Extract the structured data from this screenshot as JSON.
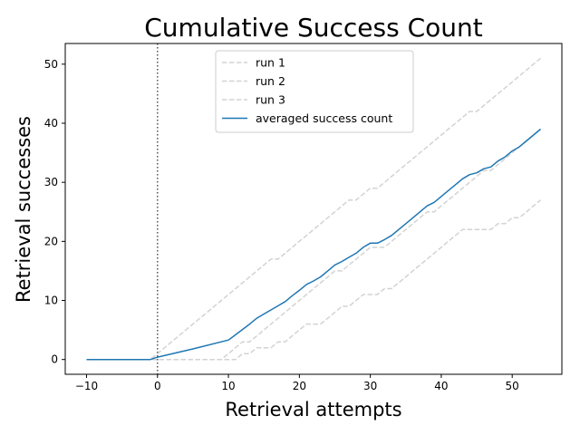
{
  "chart_data": {
    "type": "line",
    "title": "Cumulative Success Count",
    "xlabel": "Retrieval attempts",
    "ylabel": "Retrieval successes",
    "xlim": [
      -13,
      57
    ],
    "ylim": [
      -2.5,
      53.5
    ],
    "xticks": [
      -10,
      0,
      10,
      20,
      30,
      40,
      50
    ],
    "yticks": [
      0,
      10,
      20,
      30,
      40,
      50
    ],
    "vline_x": 0,
    "legend_position": "upper center",
    "series": [
      {
        "name": "run 1",
        "color": "#d3d3d3",
        "style": "dashed",
        "x": [
          -10,
          -1,
          0,
          1,
          2,
          3,
          4,
          5,
          6,
          7,
          8,
          9,
          10,
          11,
          12,
          13,
          14,
          15,
          16,
          17,
          18,
          19,
          20,
          21,
          22,
          23,
          24,
          25,
          26,
          27,
          28,
          29,
          30,
          31,
          32,
          33,
          34,
          35,
          36,
          37,
          38,
          39,
          40,
          41,
          42,
          43,
          44,
          45,
          46,
          47,
          48,
          49,
          50,
          51,
          52,
          53,
          54
        ],
        "values": [
          0,
          0,
          1,
          2,
          3,
          4,
          5,
          6,
          7,
          8,
          9,
          10,
          11,
          12,
          13,
          14,
          15,
          16,
          17,
          17,
          18,
          19,
          20,
          21,
          22,
          23,
          24,
          25,
          26,
          27,
          27,
          28,
          29,
          29,
          30,
          31,
          32,
          33,
          34,
          35,
          36,
          37,
          38,
          39,
          40,
          41,
          42,
          42,
          43,
          44,
          45,
          46,
          47,
          48,
          49,
          50,
          51
        ]
      },
      {
        "name": "run 2",
        "color": "#d3d3d3",
        "style": "dashed",
        "x": [
          -10,
          0,
          1,
          2,
          3,
          4,
          5,
          6,
          7,
          8,
          9,
          10,
          11,
          12,
          13,
          14,
          15,
          16,
          17,
          18,
          19,
          20,
          21,
          22,
          23,
          24,
          25,
          26,
          27,
          28,
          29,
          30,
          31,
          32,
          33,
          34,
          35,
          36,
          37,
          38,
          39,
          40,
          41,
          42,
          43,
          44,
          45,
          46,
          47,
          48,
          49,
          50,
          51,
          52,
          53,
          54
        ],
        "values": [
          0,
          0,
          0,
          0,
          0,
          0,
          0,
          0,
          0,
          0,
          0,
          1,
          2,
          3,
          3,
          4,
          5,
          6,
          7,
          8,
          9,
          10,
          11,
          12,
          13,
          14,
          15,
          15,
          16,
          17,
          18,
          19,
          19,
          19,
          20,
          21,
          22,
          23,
          24,
          25,
          25,
          26,
          27,
          28,
          29,
          30,
          31,
          32,
          32,
          33,
          34,
          35,
          36,
          37,
          38,
          39
        ]
      },
      {
        "name": "run 3",
        "color": "#d3d3d3",
        "style": "dashed",
        "x": [
          -10,
          0,
          1,
          2,
          3,
          4,
          5,
          6,
          7,
          8,
          9,
          10,
          11,
          12,
          13,
          14,
          15,
          16,
          17,
          18,
          19,
          20,
          21,
          22,
          23,
          24,
          25,
          26,
          27,
          28,
          29,
          30,
          31,
          32,
          33,
          34,
          35,
          36,
          37,
          38,
          39,
          40,
          41,
          42,
          43,
          44,
          45,
          46,
          47,
          48,
          49,
          50,
          51,
          52,
          53,
          54
        ],
        "values": [
          0,
          0,
          0,
          0,
          0,
          0,
          0,
          0,
          0,
          0,
          0,
          0,
          0,
          1,
          1,
          2,
          2,
          2,
          3,
          3,
          4,
          5,
          6,
          6,
          6,
          7,
          8,
          9,
          9,
          10,
          11,
          11,
          11,
          12,
          12,
          13,
          14,
          15,
          16,
          17,
          18,
          19,
          20,
          21,
          22,
          22,
          22,
          22,
          22,
          23,
          23,
          24,
          24,
          25,
          26,
          27
        ]
      },
      {
        "name": "averaged success count",
        "color": "#1f77b4",
        "style": "solid",
        "x": [
          -10,
          -1,
          0,
          5,
          10,
          13,
          14,
          15,
          16,
          17,
          18,
          19,
          20,
          21,
          22,
          23,
          24,
          25,
          26,
          27,
          28,
          29,
          30,
          31,
          32,
          33,
          34,
          35,
          36,
          37,
          38,
          39,
          40,
          41,
          42,
          43,
          44,
          45,
          46,
          47,
          48,
          49,
          50,
          51,
          52,
          53,
          54
        ],
        "values": [
          0,
          0,
          0.4,
          1.8,
          3.3,
          6,
          7,
          7.7,
          8.4,
          9.1,
          9.8,
          10.8,
          11.7,
          12.7,
          13.3,
          14,
          15,
          16,
          16.6,
          17.3,
          18,
          19,
          19.7,
          19.7,
          20.3,
          21,
          22,
          23,
          24,
          25,
          26,
          26.6,
          27.6,
          28.6,
          29.6,
          30.6,
          31.3,
          31.6,
          32.3,
          32.6,
          33.6,
          34.3,
          35.3,
          36,
          37,
          38,
          39
        ]
      }
    ]
  }
}
